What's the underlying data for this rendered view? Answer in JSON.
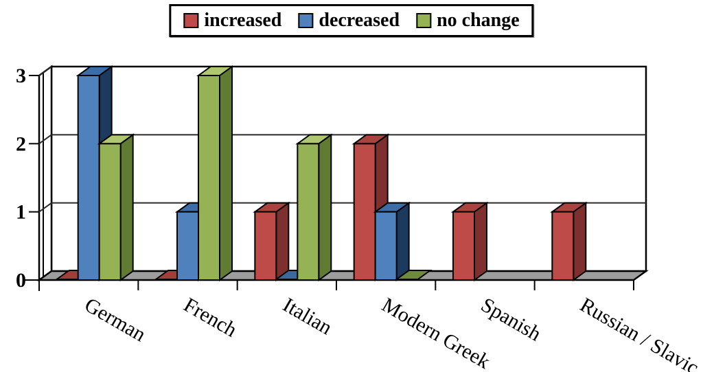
{
  "chart_data": {
    "type": "bar",
    "subtype": "3d-column",
    "title": "",
    "xlabel": "",
    "ylabel": "",
    "categories": [
      "German",
      "French",
      "Italian",
      "Modern Greek",
      "Spanish",
      "Russian / Slavic"
    ],
    "series": [
      {
        "name": "increased",
        "values": [
          0,
          0,
          1,
          2,
          1,
          1
        ],
        "color_front": "#BE4B48",
        "color_top": "#A84340",
        "color_side": "#7D302E",
        "color_zero": "#A13E3B"
      },
      {
        "name": "decreased",
        "values": [
          3,
          1,
          0,
          1,
          null,
          null
        ],
        "color_front": "#4F81BD",
        "color_top": "#3E6DA5",
        "color_side": "#1B3A5E",
        "color_zero": "#3A689F"
      },
      {
        "name": "no change",
        "values": [
          2,
          3,
          2,
          0,
          null,
          null
        ],
        "color_front": "#95B254",
        "color_top": "#AFC773",
        "color_side": "#617B33",
        "color_zero": "#6F8A39"
      }
    ],
    "ylim": [
      0,
      3
    ],
    "yticks": [
      "0",
      "1",
      "2",
      "3"
    ],
    "legend_position": "top-center",
    "grid": true,
    "wall_color": "#FFFFFF",
    "floor_color": "#9D9D9D",
    "gridline_color": "#2B2B2B",
    "outline_color": "#000000"
  }
}
